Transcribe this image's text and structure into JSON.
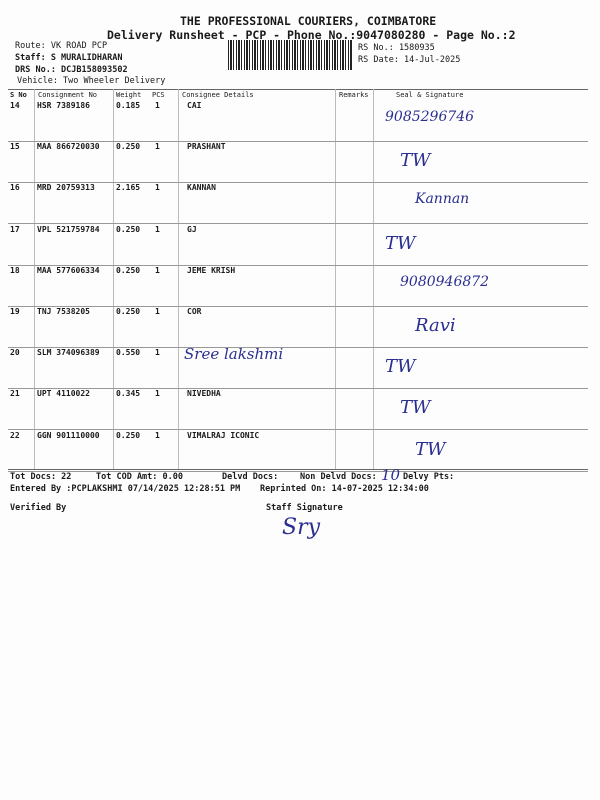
{
  "header": {
    "company": "THE PROFESSIONAL COURIERS, COIMBATORE",
    "title": "Delivery Runsheet - PCP - Phone No.:9047080280 - Page No.:2",
    "route": "Route: VK ROAD PCP",
    "staff": "Staff: S MURALIDHARAN",
    "drs": "DRS No.: DCJB158093502",
    "vehicle": "Vehicle: Two Wheeler Delivery",
    "rs_no": "RS No.: 1580935",
    "rs_date": "RS Date: 14-Jul-2025"
  },
  "columns": [
    "S No",
    "Consignment No",
    "Weight",
    "PCS",
    "Consignee Details",
    "Remarks",
    "Seal & Signature"
  ],
  "rows": [
    {
      "sno": "14",
      "cn": "HSR 7389186",
      "wt": "0.185",
      "pcs": "1",
      "name": "CAI",
      "sig": "9085296746"
    },
    {
      "sno": "15",
      "cn": "MAA 866720030",
      "wt": "0.250",
      "pcs": "1",
      "name": "PRASHANT",
      "sig": "TW"
    },
    {
      "sno": "16",
      "cn": "MRD 20759313",
      "wt": "2.165",
      "pcs": "1",
      "name": "KANNAN",
      "sig": "Kannan"
    },
    {
      "sno": "17",
      "cn": "VPL 521759784",
      "wt": "0.250",
      "pcs": "1",
      "name": "GJ",
      "sig": "TW"
    },
    {
      "sno": "18",
      "cn": "MAA 577606334",
      "wt": "0.250",
      "pcs": "1",
      "name": "JEME KRISH",
      "sig": "9080946872"
    },
    {
      "sno": "19",
      "cn": "TNJ 7538205",
      "wt": "0.250",
      "pcs": "1",
      "name": "COR",
      "sig": "Ravi"
    },
    {
      "sno": "20",
      "cn": "SLM 374096389",
      "wt": "0.550",
      "pcs": "1",
      "name": "Sree lakshmi",
      "sig": "TW"
    },
    {
      "sno": "21",
      "cn": "UPT 4110022",
      "wt": "0.345",
      "pcs": "1",
      "name": "NIVEDHA",
      "sig": "TW"
    },
    {
      "sno": "22",
      "cn": "GGN 901110000",
      "wt": "0.250",
      "pcs": "1",
      "name": "VIMALRAJ ICONIC",
      "sig": "TW"
    }
  ],
  "footer": {
    "tot_docs": "Tot Docs: 22",
    "tot_cod": "Tot COD Amt:    0.00",
    "delvd": "Delvd Docs:",
    "non_delvd": "Non Delvd Docs:",
    "non_delvd_hand": "10",
    "delvy_pts": "Delvy Pts:",
    "entered": "Entered By :PCPLAKSHMI 07/14/2025 12:28:51 PM",
    "reprinted": "Reprinted On: 14-07-2025 12:34:00",
    "verified": "Verified By",
    "staff_sig": "Staff Signature",
    "staff_sig_hand": "Sry"
  }
}
